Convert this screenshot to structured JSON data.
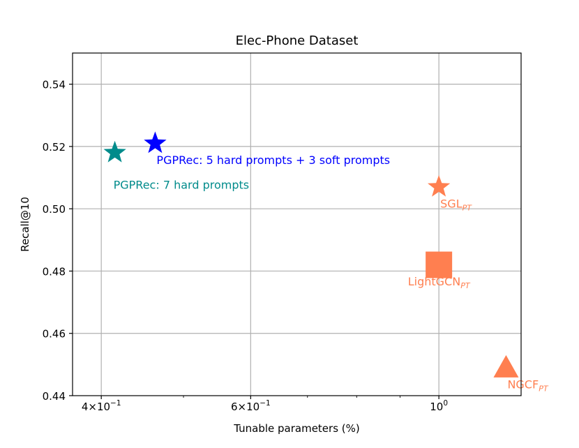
{
  "chart_data": {
    "type": "scatter",
    "title": "Elec-Phone Dataset",
    "xlabel": "Tunable parameters (%)",
    "ylabel": "Recall@10",
    "xscale": "log",
    "xlim": [
      0.37,
      1.25
    ],
    "ylim": [
      0.44,
      0.55
    ],
    "grid": true,
    "x_ticks": [
      {
        "value": 0.4,
        "base": "4×10",
        "exp": "−1"
      },
      {
        "value": 0.6,
        "base": "6×10",
        "exp": "−1"
      },
      {
        "value": 1.0,
        "base": "10",
        "exp": "0"
      }
    ],
    "y_ticks": [
      {
        "value": 0.44,
        "label": "0.44"
      },
      {
        "value": 0.46,
        "label": "0.46"
      },
      {
        "value": 0.48,
        "label": "0.48"
      },
      {
        "value": 0.5,
        "label": "0.50"
      },
      {
        "value": 0.52,
        "label": "0.52"
      },
      {
        "value": 0.54,
        "label": "0.54"
      }
    ],
    "points": [
      {
        "name": "PGPRec: 7 hard prompts",
        "sub": "",
        "x": 0.415,
        "y": 0.518,
        "marker": "star",
        "color": "#008b8b",
        "label_anchor": "start",
        "label_dx": -2,
        "label_dy": 0.0105
      },
      {
        "name": "PGPRec: 5 hard prompts + 3 soft prompts",
        "sub": "",
        "x": 0.463,
        "y": 0.521,
        "marker": "star",
        "color": "#0000ff",
        "label_anchor": "start",
        "label_dx": 2,
        "label_dy": 0.0055
      },
      {
        "name": "SGL",
        "sub": "PT",
        "x": 1.0,
        "y": 0.507,
        "marker": "star",
        "color": "#ff7f50",
        "label_anchor": "start",
        "label_dx": 2,
        "label_dy": 0.0055
      },
      {
        "name": "LightGCN",
        "sub": "PT",
        "x": 1.0,
        "y": 0.482,
        "marker": "square",
        "color": "#ff7f50",
        "label_anchor": "middle",
        "label_dx": 0,
        "label_dy": 0.0055
      },
      {
        "name": "NGCF",
        "sub": "PT",
        "x": 1.2,
        "y": 0.449,
        "marker": "triangle",
        "color": "#ff7f50",
        "label_anchor": "start",
        "label_dx": 2,
        "label_dy": 0.0055
      }
    ]
  }
}
